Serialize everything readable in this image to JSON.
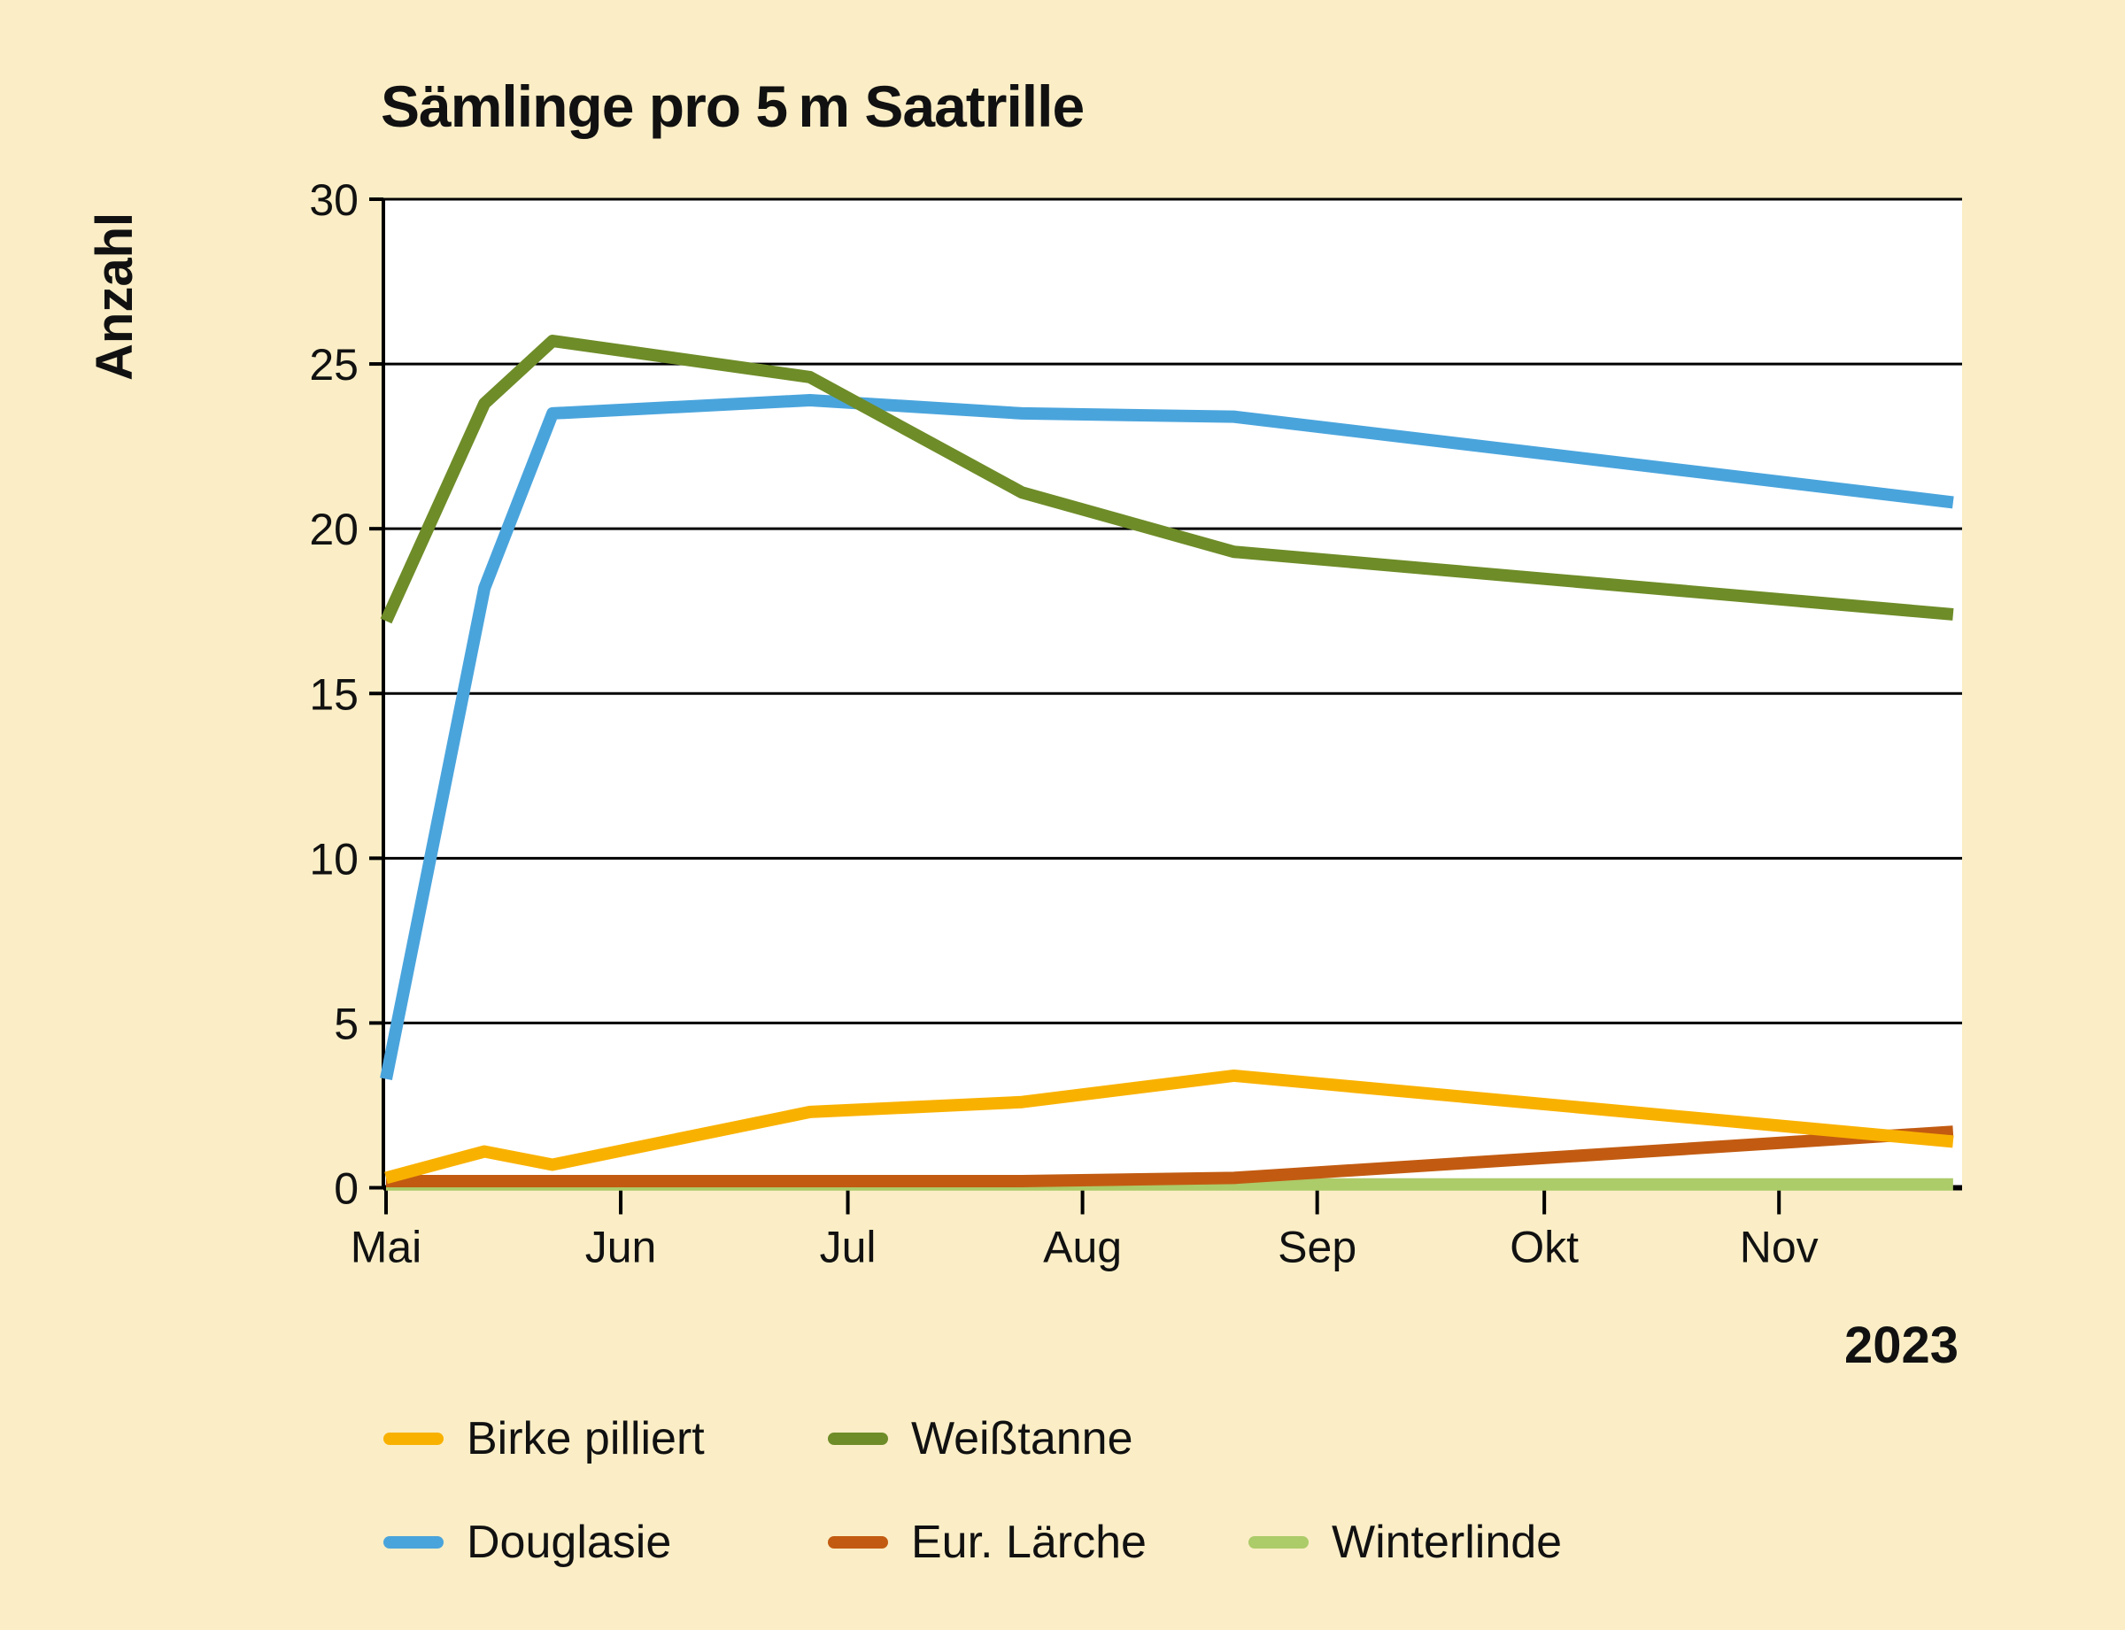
{
  "page": {
    "background_color": "#FBEEC6",
    "text_color": "#111111"
  },
  "chart_data": {
    "type": "line",
    "title": "Sämlinge pro 5 m Saatrille",
    "ylabel": "Anzahl",
    "year_label": "2023",
    "x_tick_labels": [
      "Mai",
      "Jun",
      "Jul",
      "Aug",
      "Sep",
      "Okt",
      "Nov"
    ],
    "x_tick_day_offsets": [
      0,
      31,
      61,
      92,
      123,
      153,
      184
    ],
    "yticks": [
      0,
      5,
      10,
      15,
      20,
      25,
      30
    ],
    "ylim": [
      0,
      30
    ],
    "grid": "horizontal-only",
    "legend_position": "below-chart",
    "x_axis_unit": "days since 2023-05-01",
    "sample_dates": [
      "2023-05-01",
      "2023-05-14",
      "2023-05-23",
      "2023-06-26",
      "2023-07-24",
      "2023-08-21",
      "2023-11-24"
    ],
    "sample_day_offsets": [
      0,
      13,
      22,
      56,
      84,
      112,
      207
    ],
    "series": [
      {
        "name": "Birke pilliert",
        "color": "#F9B100",
        "values": [
          0.3,
          1.1,
          0.7,
          2.3,
          2.6,
          3.4,
          1.4
        ]
      },
      {
        "name": "Weißtanne",
        "color": "#6E8C28",
        "values": [
          17.2,
          23.8,
          25.7,
          24.6,
          21.1,
          19.3,
          17.4
        ]
      },
      {
        "name": "Douglasie",
        "color": "#4AA4DC",
        "values": [
          3.3,
          18.2,
          23.5,
          23.9,
          23.5,
          23.4,
          20.8
        ]
      },
      {
        "name": "Eur. Lärche",
        "color": "#C25B11",
        "values": [
          0.2,
          0.2,
          0.2,
          0.2,
          0.2,
          0.3,
          1.7
        ]
      },
      {
        "name": "Winterlinde",
        "color": "#ACCB69",
        "values": [
          0.1,
          0.1,
          0.1,
          0.1,
          0.1,
          0.1,
          0.1
        ]
      }
    ],
    "axis_color": "#000000",
    "plot_background": "#FFFFFF"
  }
}
